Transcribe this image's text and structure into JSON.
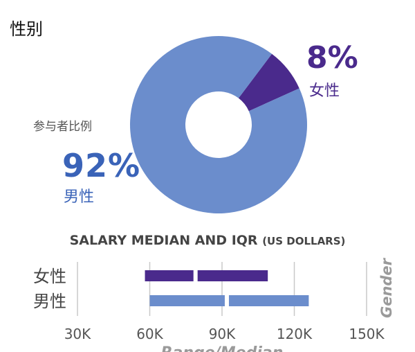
{
  "section_title": "性别",
  "donut": {
    "participants_label": "参与者比例",
    "male_label": "男性",
    "male_pct": "92%",
    "female_label": "女性",
    "female_pct": "8%"
  },
  "chart_data": [
    {
      "type": "pie",
      "variant": "donut",
      "categories": [
        "男性",
        "女性"
      ],
      "values": [
        92,
        8
      ],
      "colors": [
        "#6b8dcc",
        "#4a2a8c"
      ]
    },
    {
      "type": "bar",
      "variant": "range",
      "title": "SALARY MEDIAN AND IQR",
      "title_suffix": "(US DOLLARS)",
      "ylabel": "Gender",
      "xlabel": "Range/Median",
      "xlim": [
        30000,
        150000
      ],
      "x_ticks": [
        "30K",
        "60K",
        "90K",
        "120K",
        "150K"
      ],
      "x_tick_values": [
        30000,
        60000,
        90000,
        120000,
        150000
      ],
      "categories": [
        "女性",
        "男性"
      ],
      "ranges": [
        {
          "name": "女性",
          "low": 58000,
          "median": 79000,
          "high": 109000,
          "color": "#4a2a8c"
        },
        {
          "name": "男性",
          "low": 60000,
          "median": 92000,
          "high": 126000,
          "color": "#6b8dcc"
        }
      ]
    }
  ]
}
